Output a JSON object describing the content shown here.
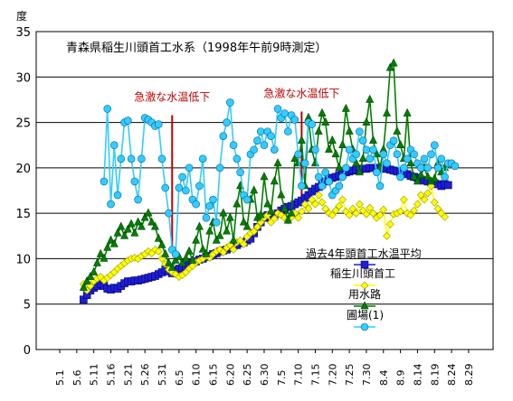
{
  "chart_data": {
    "type": "line",
    "title": "青森県稲生川頭首工水系（1998年午前9時測定）",
    "ylabel": "度",
    "ylim": [
      0,
      35
    ],
    "y_ticks": [
      0,
      5,
      10,
      15,
      20,
      25,
      30,
      35
    ],
    "x_range": [
      "5/1",
      "9/2"
    ],
    "x_tick_labels": [
      "5.1",
      "5.6",
      "5.11",
      "5.16",
      "5.21",
      "5.26",
      "5.31",
      "6.5",
      "6.10",
      "6.15",
      "6.20",
      "6.25",
      "6.30",
      "7.5",
      "7.10",
      "7.15",
      "7.20",
      "7.25",
      "7.30",
      "8.4",
      "8.9",
      "8.14",
      "8.19",
      "8.24",
      "8.29"
    ],
    "grid": "horizontal",
    "legend_placement": "right, over the plot",
    "annotations": [
      {
        "text": "急激な水温低下",
        "x": "6/3",
        "y_from": 25.8,
        "y_to": 11.0
      },
      {
        "text": "急激な水温低下",
        "x": "7/11",
        "y_from": 26.2,
        "y_to": 16.0
      }
    ],
    "series": [
      {
        "name": "過去4年頭首工水温平均",
        "color": "#1f1fd0",
        "marker": "square",
        "start": "5/8",
        "values": [
          5.5,
          6.0,
          6.5,
          6.8,
          7.0,
          7.2,
          7.0,
          6.7,
          6.6,
          6.8,
          6.7,
          7.0,
          7.3,
          7.5,
          7.5,
          7.6,
          7.6,
          7.7,
          7.8,
          7.9,
          8.0,
          8.1,
          8.3,
          8.5,
          8.8,
          8.6,
          8.4,
          8.7,
          8.9,
          9.0,
          9.2,
          9.4,
          9.6,
          9.7,
          9.9,
          10.0,
          10.2,
          10.3,
          10.5,
          10.6,
          10.8,
          10.9,
          11.0,
          11.2,
          11.4,
          11.5,
          11.7,
          11.8,
          12.0,
          12.2,
          12.8,
          13.5,
          14.0,
          14.5,
          14.8,
          14.5,
          14.7,
          15.0,
          15.3,
          15.5,
          15.7,
          15.8,
          16.0,
          16.2,
          16.4,
          16.7,
          17.0,
          17.4,
          17.7,
          17.9,
          18.2,
          18.5,
          18.7,
          18.9,
          19.0,
          19.2,
          19.3,
          19.5,
          19.6,
          19.7,
          19.8,
          19.8,
          19.9,
          19.9,
          20.0,
          20.0,
          20.0,
          20.0,
          19.9,
          19.9,
          19.8,
          19.7,
          19.6,
          19.5,
          19.4,
          19.3,
          19.1,
          19.0,
          18.9,
          18.7,
          18.6,
          18.5,
          18.4,
          18.3,
          18.2,
          18.0,
          18.2,
          18.1
        ]
      },
      {
        "name": "稲生川頭首工",
        "color": "#ffff00",
        "marker": "diamond",
        "start": "5/8",
        "values": [
          7.2,
          6.5,
          7.0,
          7.5,
          7.8,
          8.0,
          7.6,
          7.9,
          8.2,
          8.5,
          8.9,
          9.2,
          9.5,
          9.8,
          10.0,
          10.1,
          10.0,
          10.3,
          10.5,
          10.8,
          10.6,
          11.0,
          10.8,
          10.0,
          9.4,
          8.8,
          8.5,
          8.3,
          8.0,
          8.2,
          8.5,
          8.9,
          9.2,
          9.6,
          9.8,
          10.0,
          10.3,
          10.1,
          10.5,
          10.8,
          11.0,
          10.7,
          11.2,
          11.5,
          11.0,
          11.8,
          12.0,
          11.6,
          12.4,
          12.8,
          13.0,
          13.5,
          14.0,
          14.5,
          14.8,
          14.0,
          14.4,
          15.0,
          14.8,
          14.5,
          14.2,
          14.6,
          15.0,
          14.5,
          15.2,
          16.0,
          15.5,
          16.5,
          16.0,
          17.0,
          16.2,
          15.5,
          15.0,
          14.8,
          15.3,
          15.8,
          16.5,
          15.2,
          14.8,
          15.5,
          15.0,
          16.0,
          15.3,
          14.9,
          15.6,
          15.0,
          14.5,
          14.8,
          15.4,
          12.5,
          13.8,
          14.9,
          15.0,
          15.2,
          16.5,
          15.0,
          14.8,
          15.3,
          16.0,
          17.0,
          16.5,
          17.2,
          18.0,
          16.2,
          15.5,
          15.0,
          14.6
        ]
      },
      {
        "name": "用水路",
        "color": "#008000",
        "marker": "triangle",
        "start": "5/8",
        "values": [
          6.8,
          7.5,
          8.0,
          8.5,
          9.5,
          10.5,
          10.0,
          11.2,
          12.0,
          11.6,
          12.8,
          13.5,
          12.5,
          13.2,
          13.8,
          12.8,
          14.0,
          13.5,
          14.5,
          15.0,
          14.0,
          13.5,
          12.2,
          11.5,
          10.5,
          9.5,
          9.0,
          9.8,
          10.2,
          9.5,
          10.0,
          10.8,
          9.8,
          12.0,
          13.5,
          11.0,
          10.5,
          13.0,
          14.0,
          12.0,
          12.5,
          15.0,
          13.0,
          14.5,
          12.0,
          16.0,
          18.0,
          14.0,
          13.5,
          16.5,
          17.5,
          14.5,
          14.8,
          19.0,
          16.0,
          15.2,
          18.5,
          20.5,
          17.0,
          15.5,
          14.2,
          15.0,
          21.0,
          20.5,
          23.0,
          18.0,
          25.5,
          22.0,
          20.5,
          24.0,
          26.0,
          25.0,
          22.0,
          23.0,
          21.5,
          20.0,
          22.5,
          26.5,
          24.0,
          22.0,
          20.5,
          19.5,
          21.0,
          25.0,
          27.5,
          23.0,
          21.5,
          20.0,
          22.0,
          26.0,
          31.0,
          31.5,
          24.0,
          22.5,
          21.0,
          26.0,
          20.5,
          19.0,
          18.5,
          19.2,
          20.0,
          19.0,
          18.5,
          18.8,
          20.5,
          19.5,
          20.0
        ]
      },
      {
        "name": "圃場(1)",
        "color": "#33ccff",
        "marker": "circle",
        "start": "5/14",
        "values": [
          18.5,
          26.5,
          16.0,
          22.5,
          17.0,
          21.0,
          25.0,
          25.2,
          21.0,
          18.5,
          16.5,
          21.0,
          25.5,
          25.3,
          25.0,
          24.6,
          24.8,
          21.0,
          17.8,
          15.0,
          11.0,
          10.5,
          17.8,
          19.0,
          17.5,
          20.0,
          16.5,
          16.0,
          18.0,
          21.0,
          14.5,
          15.8,
          16.5,
          14.0,
          20.0,
          23.5,
          25.0,
          27.2,
          22.5,
          21.0,
          19.5,
          17.0,
          16.5,
          21.5,
          22.0,
          23.0,
          24.0,
          22.5,
          24.0,
          23.5,
          22.0,
          26.5,
          25.5,
          26.0,
          24.0,
          25.8,
          25.3,
          21.5,
          18.0,
          20.5,
          25.0,
          24.8,
          22.0,
          19.0,
          18.0,
          19.5,
          18.5,
          17.0,
          17.5,
          18.0,
          19.0,
          20.0,
          22.0,
          21.0,
          21.5,
          24.0,
          23.0,
          22.0,
          21.0,
          22.0,
          19.5,
          18.0,
          21.5,
          20.5,
          22.5,
          23.0,
          21.5,
          19.0,
          20.0,
          21.0,
          22.0,
          21.5,
          20.5,
          20.0,
          21.0,
          20.0,
          21.5,
          22.5,
          20.0,
          21.0,
          19.0,
          20.5,
          20.5,
          20.2
        ]
      }
    ]
  }
}
